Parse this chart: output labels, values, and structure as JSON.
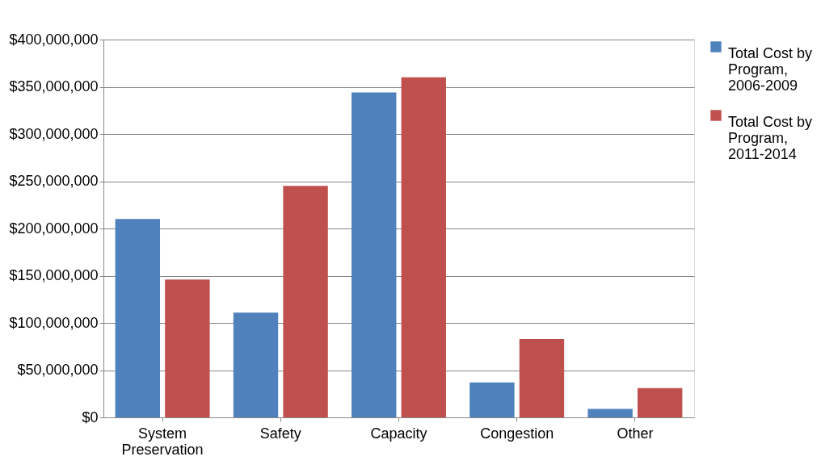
{
  "chart_data": {
    "type": "bar",
    "categories": [
      "System Preservation",
      "Safety",
      "Capacity",
      "Congestion",
      "Other"
    ],
    "series": [
      {
        "name": "Total Cost by Program, 2006-2009",
        "color": "#4f81bd",
        "values": [
          210000000,
          111000000,
          344000000,
          37000000,
          9000000
        ]
      },
      {
        "name": "Total Cost by Program, 2011-2014",
        "color": "#c0504d",
        "values": [
          146000000,
          245000000,
          360000000,
          83000000,
          31000000
        ]
      }
    ],
    "ylim": [
      0,
      400000000
    ],
    "yticks": [
      {
        "value": 0,
        "label": "$0"
      },
      {
        "value": 50000000,
        "label": "$50,000,000"
      },
      {
        "value": 100000000,
        "label": "$100,000,000"
      },
      {
        "value": 150000000,
        "label": "$150,000,000"
      },
      {
        "value": 200000000,
        "label": "$200,000,000"
      },
      {
        "value": 250000000,
        "label": "$250,000,000"
      },
      {
        "value": 300000000,
        "label": "$300,000,000"
      },
      {
        "value": 350000000,
        "label": "$350,000,000"
      },
      {
        "value": 400000000,
        "label": "$400,000,000"
      }
    ],
    "grid": "y",
    "legend": "right"
  }
}
